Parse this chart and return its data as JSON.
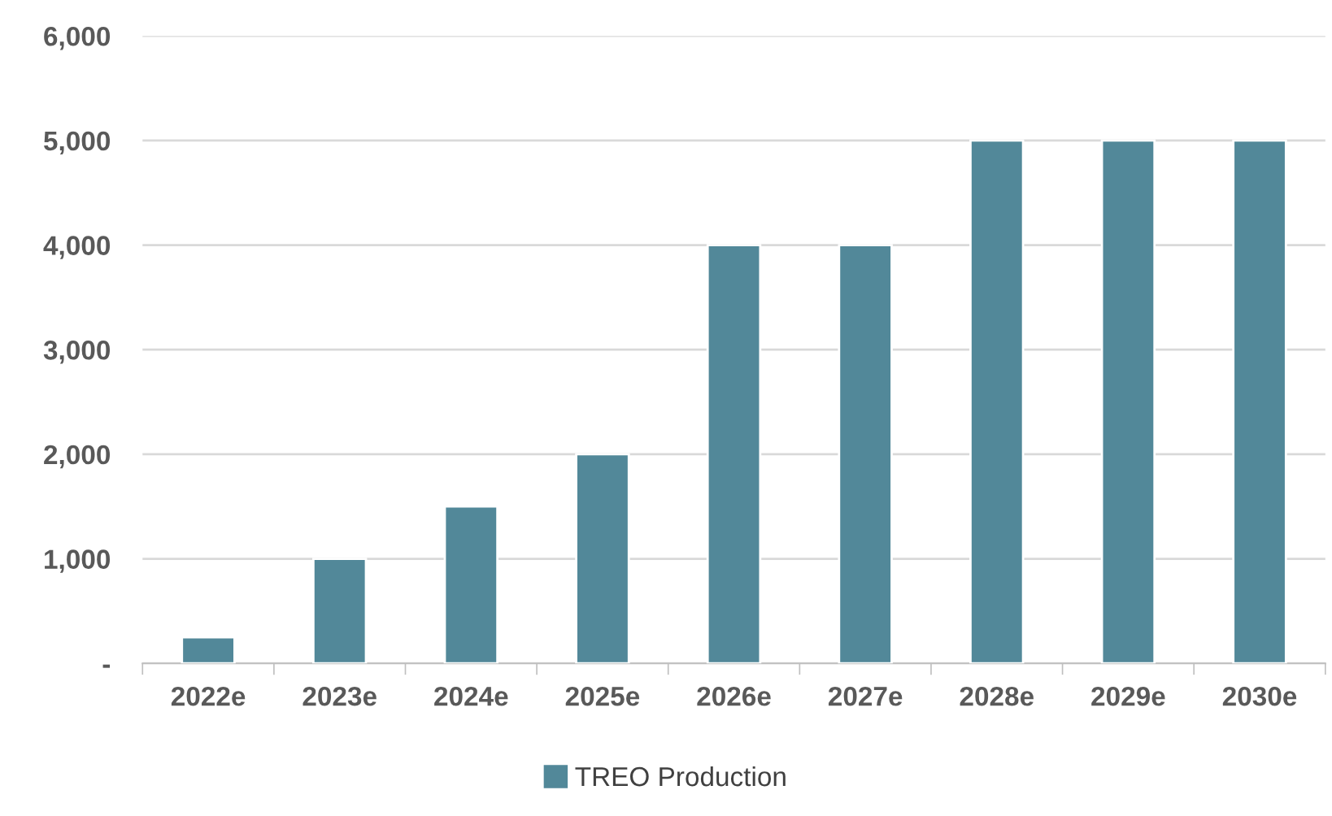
{
  "chart_data": {
    "type": "bar",
    "categories": [
      "2022e",
      "2023e",
      "2024e",
      "2025e",
      "2026e",
      "2027e",
      "2028e",
      "2029e",
      "2030e"
    ],
    "series": [
      {
        "name": "TREO Production",
        "color": "#528899",
        "values": [
          250,
          1000,
          1500,
          2000,
          4000,
          4000,
          5000,
          5000,
          5000
        ]
      }
    ],
    "ylim": [
      0,
      6000
    ],
    "yticks": [
      {
        "value": 0,
        "label": "-"
      },
      {
        "value": 1000,
        "label": "1,000"
      },
      {
        "value": 2000,
        "label": "2,000"
      },
      {
        "value": 3000,
        "label": "3,000"
      },
      {
        "value": 4000,
        "label": "4,000"
      },
      {
        "value": 5000,
        "label": "5,000"
      },
      {
        "value": 6000,
        "label": "6,000"
      }
    ],
    "grid": "y",
    "legend": "bottom"
  }
}
